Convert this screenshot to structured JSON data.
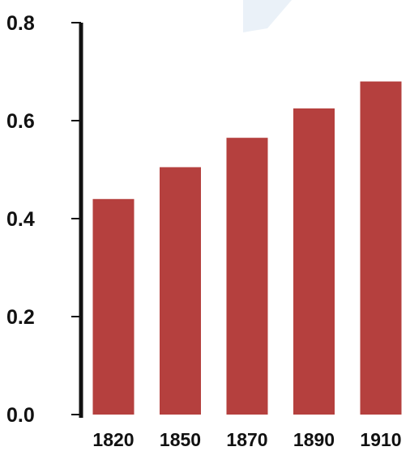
{
  "chart_data": {
    "type": "bar",
    "categories": [
      "1820",
      "1850",
      "1870",
      "1890",
      "1910"
    ],
    "values": [
      0.44,
      0.505,
      0.565,
      0.625,
      0.68
    ],
    "yticks": [
      "0.0",
      "0.2",
      "0.4",
      "0.6",
      "0.8"
    ],
    "ylim": [
      0,
      0.8
    ],
    "grid": false,
    "colors": {
      "bar": "#b5403e",
      "axis": "#111111",
      "text": "#111111",
      "watermark": "#eaf1f8"
    }
  }
}
